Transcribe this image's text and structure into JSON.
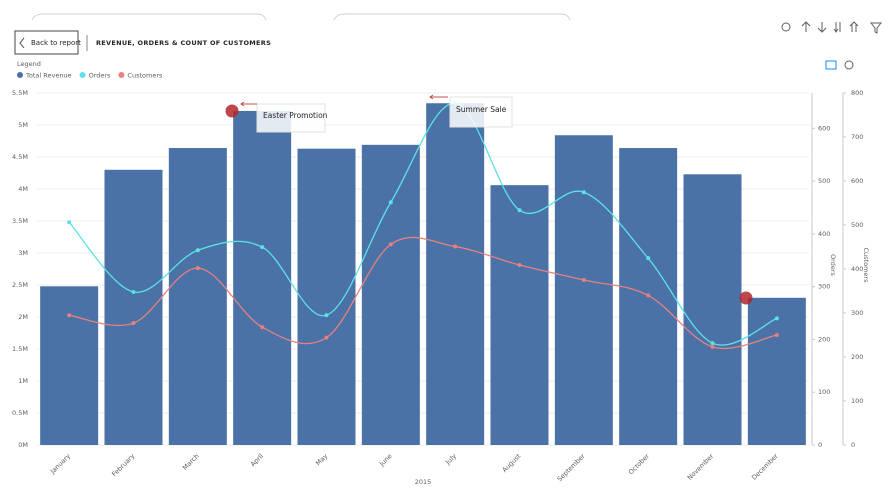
{
  "page": {
    "back_button": "Back to report"
  },
  "chart_data": {
    "type": "combo",
    "title": "REVENUE, ORDERS & COUNT OF CUSTOMERS",
    "legend_title": "Legend",
    "x_label": "2015",
    "y2_label": "Orders",
    "y3_label": "Customers",
    "categories": [
      "January",
      "February",
      "March",
      "April",
      "May",
      "June",
      "July",
      "August",
      "September",
      "October",
      "November",
      "December"
    ],
    "series": [
      {
        "name": "Total Revenue",
        "type": "bar",
        "color": "#4a72a6",
        "values": [
          2.48,
          4.3,
          4.64,
          5.22,
          4.63,
          4.69,
          5.34,
          4.06,
          4.84,
          4.64,
          4.23,
          2.3
        ]
      },
      {
        "name": "Orders",
        "type": "line",
        "axis": "y2",
        "color": "#5ce1e6",
        "values": [
          422,
          290,
          369,
          375,
          246,
          460,
          648,
          445,
          479,
          354,
          193,
          240
        ]
      },
      {
        "name": "Customers",
        "type": "line",
        "axis": "y3",
        "color": "#e8807f",
        "values": [
          295,
          277,
          402,
          268,
          244,
          456,
          451,
          409,
          375,
          340,
          223,
          250
        ]
      }
    ],
    "ylim": [
      0,
      5.5
    ],
    "yticks": [
      {
        "value": 0,
        "label": "0M"
      },
      {
        "value": 0.5,
        "label": "0.5M"
      },
      {
        "value": 1,
        "label": "1M"
      },
      {
        "value": 1.5,
        "label": "1.5M"
      },
      {
        "value": 2,
        "label": "2M"
      },
      {
        "value": 2.5,
        "label": "2.5M"
      },
      {
        "value": 3,
        "label": "3M"
      },
      {
        "value": 3.5,
        "label": "3.5M"
      },
      {
        "value": 4,
        "label": "4M"
      },
      {
        "value": 4.5,
        "label": "4.5M"
      },
      {
        "value": 5,
        "label": "5M"
      },
      {
        "value": 5.5,
        "label": "5.5M"
      }
    ],
    "y2lim": [
      0,
      667
    ],
    "y2ticks": [
      0,
      100,
      200,
      300,
      400,
      500,
      600
    ],
    "y3lim": [
      0,
      800
    ],
    "y3ticks": [
      0,
      100,
      200,
      300,
      400,
      500,
      600,
      700,
      800
    ],
    "grid": true,
    "annotations": [
      "Easter Promotion",
      "Summer Sale"
    ]
  }
}
